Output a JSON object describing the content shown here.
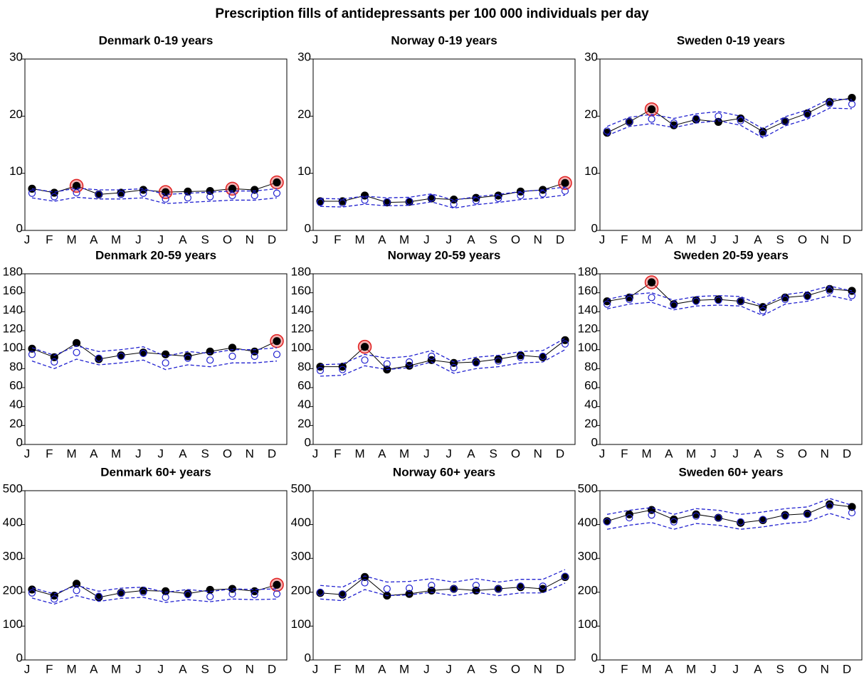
{
  "title": "Prescription fills of antidepressants per 100 000 individuals per day",
  "chart_data": [
    {
      "type": "line",
      "title": "Denmark 0-19 years",
      "categories": [
        "J",
        "F",
        "M",
        "A",
        "M",
        "J",
        "J",
        "A",
        "S",
        "O",
        "N",
        "D"
      ],
      "ylim": [
        0,
        30
      ],
      "yticks": [
        0,
        10,
        20,
        30
      ],
      "highlight_color": "#e02020",
      "highlights": [
        2,
        6,
        9,
        11
      ],
      "series": [
        {
          "color": "#000000",
          "style": "solid",
          "marker": "filled",
          "values": [
            7.3,
            6.6,
            7.8,
            6.3,
            6.6,
            7.1,
            6.7,
            6.8,
            6.9,
            7.3,
            7.1,
            8.4
          ]
        },
        {
          "color": "#2020d0",
          "style": "none",
          "marker": "open",
          "values": [
            6.5,
            5.9,
            6.6,
            6.3,
            6.3,
            6.5,
            5.5,
            5.7,
            5.9,
            6.1,
            6.1,
            6.5
          ]
        },
        {
          "color": "#2020d0",
          "style": "dashed",
          "marker": "none",
          "values": [
            7.3,
            6.7,
            7.4,
            7.1,
            7.1,
            7.3,
            6.3,
            6.5,
            6.7,
            6.9,
            6.9,
            7.3
          ]
        },
        {
          "color": "#2020d0",
          "style": "dashed",
          "marker": "none",
          "values": [
            5.7,
            5.1,
            5.8,
            5.5,
            5.5,
            5.7,
            4.7,
            4.9,
            5.1,
            5.3,
            5.3,
            5.7
          ]
        }
      ]
    },
    {
      "type": "line",
      "title": "Norway 0-19 years",
      "categories": [
        "J",
        "F",
        "M",
        "A",
        "M",
        "J",
        "J",
        "A",
        "S",
        "O",
        "N",
        "D"
      ],
      "ylim": [
        0,
        30
      ],
      "yticks": [
        0,
        10,
        20,
        30
      ],
      "highlight_color": "#e02020",
      "highlights": [
        11
      ],
      "series": [
        {
          "color": "#000000",
          "style": "solid",
          "marker": "filled",
          "values": [
            5.1,
            5.1,
            6.1,
            4.9,
            5.0,
            5.6,
            5.4,
            5.7,
            6.1,
            6.8,
            7.1,
            8.3
          ]
        },
        {
          "color": "#2020d0",
          "style": "none",
          "marker": "open",
          "values": [
            4.9,
            4.8,
            5.3,
            5.0,
            5.1,
            5.7,
            4.6,
            5.2,
            5.6,
            6.1,
            6.4,
            6.9
          ]
        },
        {
          "color": "#2020d0",
          "style": "dashed",
          "marker": "none",
          "values": [
            5.6,
            5.5,
            6.0,
            5.7,
            5.8,
            6.4,
            5.3,
            5.9,
            6.3,
            6.8,
            7.1,
            7.6
          ]
        },
        {
          "color": "#2020d0",
          "style": "dashed",
          "marker": "none",
          "values": [
            4.2,
            4.1,
            4.6,
            4.3,
            4.4,
            5.0,
            3.9,
            4.5,
            4.9,
            5.4,
            5.7,
            6.2
          ]
        }
      ]
    },
    {
      "type": "line",
      "title": "Sweden 0-19 years",
      "categories": [
        "J",
        "F",
        "M",
        "A",
        "M",
        "J",
        "J",
        "A",
        "S",
        "O",
        "N",
        "D"
      ],
      "ylim": [
        0,
        30
      ],
      "yticks": [
        0,
        10,
        20,
        30
      ],
      "highlight_color": "#e02020",
      "highlights": [
        2
      ],
      "series": [
        {
          "color": "#000000",
          "style": "solid",
          "marker": "filled",
          "values": [
            17.1,
            19.0,
            21.2,
            18.4,
            19.4,
            19.0,
            19.6,
            17.3,
            19.1,
            20.5,
            22.5,
            23.2
          ]
        },
        {
          "color": "#2020d0",
          "style": "none",
          "marker": "open",
          "values": [
            17.4,
            19.0,
            19.5,
            18.8,
            19.6,
            20.0,
            19.2,
            17.0,
            19.1,
            20.3,
            22.2,
            22.1
          ]
        },
        {
          "color": "#2020d0",
          "style": "dashed",
          "marker": "none",
          "values": [
            18.2,
            19.8,
            20.3,
            19.6,
            20.4,
            20.8,
            20.0,
            17.8,
            19.9,
            21.1,
            23.0,
            22.9
          ]
        },
        {
          "color": "#2020d0",
          "style": "dashed",
          "marker": "none",
          "values": [
            16.6,
            18.2,
            18.7,
            18.0,
            18.8,
            19.2,
            18.4,
            16.2,
            18.3,
            19.5,
            21.4,
            21.3
          ]
        }
      ]
    },
    {
      "type": "line",
      "title": "Denmark 20-59 years",
      "categories": [
        "J",
        "F",
        "M",
        "A",
        "M",
        "J",
        "J",
        "A",
        "S",
        "O",
        "N",
        "D"
      ],
      "ylim": [
        0,
        180
      ],
      "yticks": [
        0,
        20,
        40,
        60,
        80,
        100,
        120,
        140,
        160,
        180
      ],
      "highlight_color": "#e02020",
      "highlights": [
        11
      ],
      "series": [
        {
          "color": "#000000",
          "style": "solid",
          "marker": "filled",
          "values": [
            101,
            92,
            107,
            90,
            94,
            97,
            95,
            93,
            98,
            102,
            98,
            109
          ]
        },
        {
          "color": "#2020d0",
          "style": "none",
          "marker": "open",
          "values": [
            95,
            87,
            97,
            91,
            93,
            96,
            86,
            91,
            89,
            93,
            93,
            95
          ]
        },
        {
          "color": "#2020d0",
          "style": "dashed",
          "marker": "none",
          "values": [
            102,
            94,
            104,
            98,
            100,
            103,
            93,
            98,
            96,
            100,
            100,
            102
          ]
        },
        {
          "color": "#2020d0",
          "style": "dashed",
          "marker": "none",
          "values": [
            88,
            80,
            90,
            84,
            86,
            89,
            79,
            84,
            82,
            86,
            86,
            88
          ]
        }
      ]
    },
    {
      "type": "line",
      "title": "Norway 20-59 years",
      "categories": [
        "J",
        "F",
        "M",
        "A",
        "M",
        "J",
        "J",
        "A",
        "S",
        "O",
        "N",
        "D"
      ],
      "ylim": [
        0,
        180
      ],
      "yticks": [
        0,
        20,
        40,
        60,
        80,
        100,
        120,
        140,
        160,
        180
      ],
      "highlight_color": "#e02020",
      "highlights": [
        2
      ],
      "series": [
        {
          "color": "#000000",
          "style": "solid",
          "marker": "filled",
          "values": [
            82,
            82,
            103,
            79,
            83,
            89,
            86,
            87,
            90,
            94,
            92,
            110
          ]
        },
        {
          "color": "#2020d0",
          "style": "none",
          "marker": "open",
          "values": [
            78,
            79,
            89,
            85,
            87,
            93,
            81,
            86,
            88,
            92,
            93,
            106
          ]
        },
        {
          "color": "#2020d0",
          "style": "dashed",
          "marker": "none",
          "values": [
            84,
            85,
            95,
            91,
            93,
            99,
            87,
            92,
            94,
            98,
            99,
            112
          ]
        },
        {
          "color": "#2020d0",
          "style": "dashed",
          "marker": "none",
          "values": [
            72,
            73,
            83,
            79,
            81,
            87,
            75,
            80,
            82,
            86,
            87,
            100
          ]
        }
      ]
    },
    {
      "type": "line",
      "title": "Sweden 20-59 years",
      "categories": [
        "J",
        "F",
        "M",
        "A",
        "M",
        "J",
        "J",
        "A",
        "S",
        "O",
        "N",
        "D"
      ],
      "ylim": [
        0,
        180
      ],
      "yticks": [
        0,
        20,
        40,
        60,
        80,
        100,
        120,
        140,
        160,
        180
      ],
      "highlight_color": "#e02020",
      "highlights": [
        2
      ],
      "series": [
        {
          "color": "#000000",
          "style": "solid",
          "marker": "filled",
          "values": [
            151,
            155,
            171,
            148,
            152,
            153,
            151,
            145,
            155,
            157,
            164,
            162
          ]
        },
        {
          "color": "#2020d0",
          "style": "none",
          "marker": "open",
          "values": [
            148,
            153,
            155,
            147,
            151,
            152,
            151,
            141,
            153,
            156,
            162,
            157
          ]
        },
        {
          "color": "#2020d0",
          "style": "dashed",
          "marker": "none",
          "values": [
            153,
            158,
            160,
            152,
            156,
            157,
            156,
            146,
            158,
            161,
            167,
            162
          ]
        },
        {
          "color": "#2020d0",
          "style": "dashed",
          "marker": "none",
          "values": [
            143,
            148,
            150,
            142,
            146,
            147,
            146,
            136,
            148,
            151,
            157,
            152
          ]
        }
      ]
    },
    {
      "type": "line",
      "title": "Denmark 60+ years",
      "categories": [
        "J",
        "F",
        "M",
        "A",
        "M",
        "J",
        "J",
        "A",
        "S",
        "O",
        "N",
        "D"
      ],
      "ylim": [
        0,
        500
      ],
      "yticks": [
        0,
        100,
        200,
        300,
        400,
        500
      ],
      "highlight_color": "#e02020",
      "highlights": [
        11
      ],
      "series": [
        {
          "color": "#000000",
          "style": "solid",
          "marker": "filled",
          "values": [
            208,
            190,
            225,
            185,
            198,
            205,
            203,
            196,
            207,
            210,
            203,
            222
          ]
        },
        {
          "color": "#2020d0",
          "style": "none",
          "marker": "open",
          "values": [
            198,
            180,
            205,
            188,
            197,
            200,
            185,
            193,
            187,
            195,
            193,
            195
          ]
        },
        {
          "color": "#2020d0",
          "style": "dashed",
          "marker": "none",
          "values": [
            213,
            195,
            220,
            203,
            212,
            215,
            200,
            208,
            202,
            210,
            208,
            210
          ]
        },
        {
          "color": "#2020d0",
          "style": "dashed",
          "marker": "none",
          "values": [
            183,
            165,
            190,
            173,
            182,
            185,
            170,
            178,
            172,
            180,
            178,
            180
          ]
        }
      ]
    },
    {
      "type": "line",
      "title": "Norway 60+ years",
      "categories": [
        "J",
        "F",
        "M",
        "A",
        "M",
        "J",
        "J",
        "A",
        "S",
        "O",
        "N",
        "D"
      ],
      "ylim": [
        0,
        500
      ],
      "yticks": [
        0,
        100,
        200,
        300,
        400,
        500
      ],
      "highlight_color": "#e02020",
      "highlights": [],
      "series": [
        {
          "color": "#000000",
          "style": "solid",
          "marker": "filled",
          "values": [
            198,
            193,
            245,
            190,
            195,
            205,
            210,
            205,
            210,
            215,
            210,
            245
          ]
        },
        {
          "color": "#2020d0",
          "style": "none",
          "marker": "open",
          "values": [
            200,
            195,
            228,
            210,
            212,
            220,
            210,
            220,
            210,
            218,
            218,
            247
          ]
        },
        {
          "color": "#2020d0",
          "style": "dashed",
          "marker": "none",
          "values": [
            220,
            215,
            248,
            230,
            232,
            240,
            230,
            240,
            230,
            238,
            238,
            267
          ]
        },
        {
          "color": "#2020d0",
          "style": "dashed",
          "marker": "none",
          "values": [
            180,
            175,
            208,
            190,
            192,
            200,
            190,
            200,
            190,
            198,
            198,
            227
          ]
        }
      ]
    },
    {
      "type": "line",
      "title": "Sweden 60+ years",
      "categories": [
        "J",
        "F",
        "M",
        "A",
        "M",
        "J",
        "J",
        "A",
        "S",
        "O",
        "N",
        "D"
      ],
      "ylim": [
        0,
        500
      ],
      "yticks": [
        0,
        100,
        200,
        300,
        400,
        500
      ],
      "highlight_color": "#e02020",
      "highlights": [],
      "series": [
        {
          "color": "#000000",
          "style": "solid",
          "marker": "filled",
          "values": [
            410,
            430,
            443,
            415,
            430,
            420,
            405,
            413,
            428,
            432,
            460,
            452
          ]
        },
        {
          "color": "#2020d0",
          "style": "none",
          "marker": "open",
          "values": [
            408,
            420,
            428,
            408,
            425,
            420,
            408,
            415,
            425,
            430,
            455,
            435
          ]
        },
        {
          "color": "#2020d0",
          "style": "dashed",
          "marker": "none",
          "values": [
            430,
            442,
            450,
            430,
            447,
            442,
            430,
            437,
            447,
            452,
            477,
            457
          ]
        },
        {
          "color": "#2020d0",
          "style": "dashed",
          "marker": "none",
          "values": [
            386,
            398,
            406,
            386,
            403,
            398,
            386,
            393,
            403,
            408,
            433,
            413
          ]
        }
      ]
    }
  ]
}
